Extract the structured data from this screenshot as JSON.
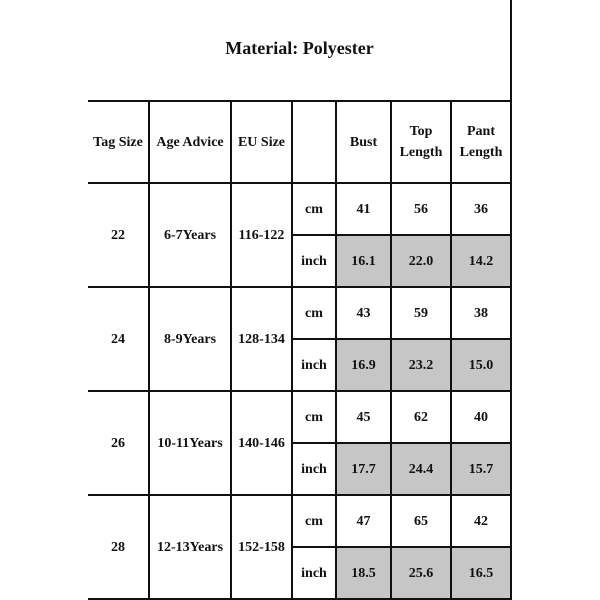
{
  "title": "Material: Polyester",
  "headers": [
    "Tag Size",
    "Age Advice",
    "EU Size",
    "",
    "Bust",
    "Top Length",
    "Pant Length"
  ],
  "unit_labels": [
    "cm",
    "inch"
  ],
  "highlight_color": "#c6c6c6",
  "rows": [
    {
      "tag": "22",
      "age": "6-7Years",
      "eu": "116-122",
      "cm": [
        "41",
        "56",
        "36"
      ],
      "inch": [
        "16.1",
        "22.0",
        "14.2"
      ]
    },
    {
      "tag": "24",
      "age": "8-9Years",
      "eu": "128-134",
      "cm": [
        "43",
        "59",
        "38"
      ],
      "inch": [
        "16.9",
        "23.2",
        "15.0"
      ]
    },
    {
      "tag": "26",
      "age": "10-11Years",
      "eu": "140-146",
      "cm": [
        "45",
        "62",
        "40"
      ],
      "inch": [
        "17.7",
        "24.4",
        "15.7"
      ]
    },
    {
      "tag": "28",
      "age": "12-13Years",
      "eu": "152-158",
      "cm": [
        "47",
        "65",
        "42"
      ],
      "inch": [
        "18.5",
        "25.6",
        "16.5"
      ]
    }
  ]
}
